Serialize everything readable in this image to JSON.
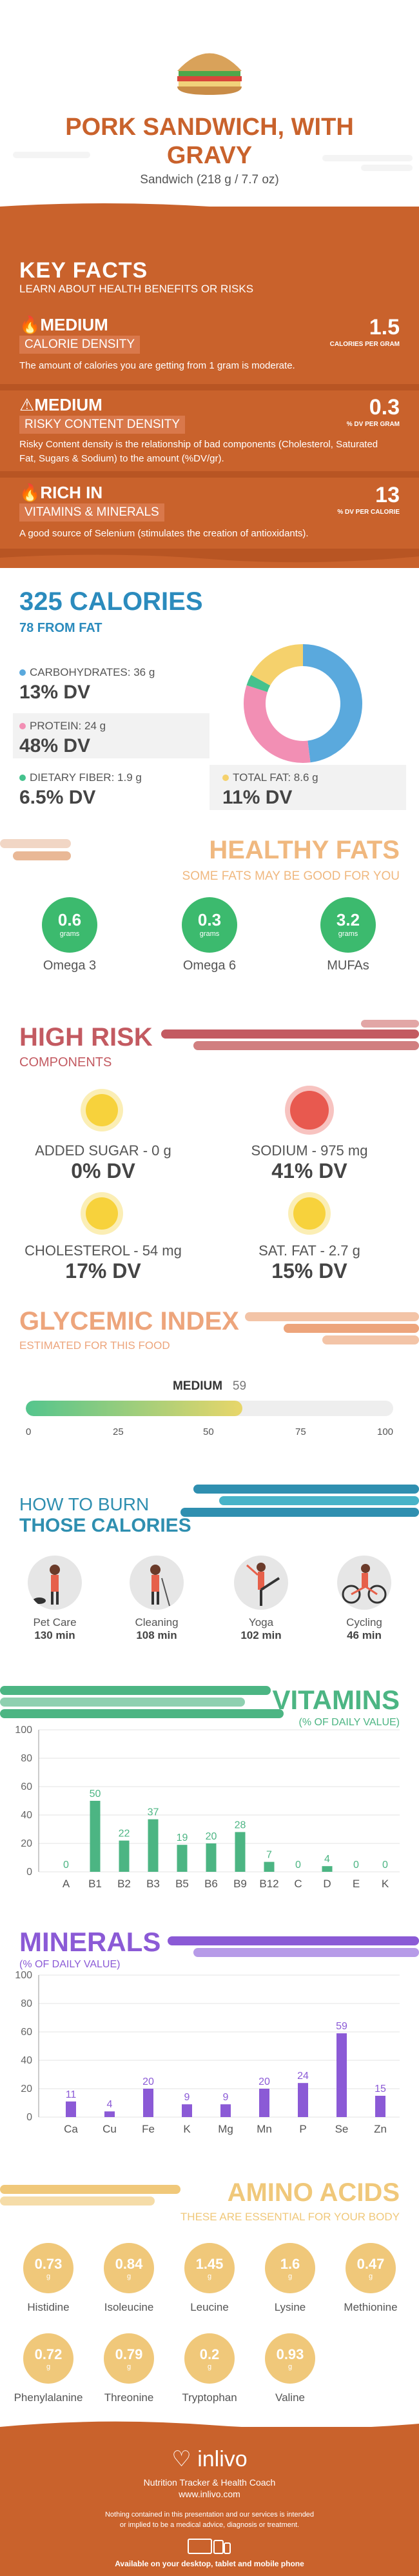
{
  "header": {
    "title": "PORK SANDWICH, WITH GRAVY",
    "serving": "Sandwich (218 g / 7.7 oz)"
  },
  "key_facts": {
    "heading": "KEY FACTS",
    "subheading": "LEARN ABOUT HEALTH BENEFITS OR RISKS",
    "items": [
      {
        "level": "MEDIUM",
        "label": "CALORIE DENSITY",
        "value": "1.5",
        "unit": "CALORIES PER GRAM",
        "desc": "The amount of calories you are getting from 1 gram is moderate."
      },
      {
        "level": "MEDIUM",
        "label": "RISKY CONTENT DENSITY",
        "value": "0.3",
        "unit": "% DV PER GRAM",
        "desc": "Risky Content density is the relationship of bad components (Cholesterol, Saturated Fat, Sugars & Sodium) to the amount (%DV/gr)."
      },
      {
        "level": "RICH IN",
        "label": "VITAMINS & MINERALS",
        "value": "13",
        "unit": "% DV PER CALORIE",
        "desc": "A good source of Selenium (stimulates the creation of antioxidants)."
      }
    ]
  },
  "calories": {
    "title": "325 CALORIES",
    "from_fat": "78 FROM FAT",
    "nutrients": [
      {
        "label": "CARBOHYDRATES: 36 g",
        "dv": "13% DV",
        "color": "#5aa9dd"
      },
      {
        "label": "PROTEIN: 24 g",
        "dv": "48% DV",
        "color": "#f28fb4"
      },
      {
        "label": "DIETARY FIBER: 1.9 g",
        "dv": "6.5% DV",
        "color": "#44c28d"
      },
      {
        "label": "TOTAL FAT: 8.6 g",
        "dv": "11% DV",
        "color": "#f5d16c"
      }
    ],
    "donut": [
      {
        "name": "carbs",
        "value": 48,
        "color": "#5aa9dd"
      },
      {
        "name": "protein",
        "value": 32,
        "color": "#f28fb4"
      },
      {
        "name": "fiber",
        "value": 3,
        "color": "#44c28d"
      },
      {
        "name": "fat",
        "value": 17,
        "color": "#f5d16c"
      }
    ]
  },
  "healthy_fats": {
    "title": "HEALTHY FATS",
    "subtitle": "SOME FATS MAY BE GOOD FOR YOU",
    "items": [
      {
        "value": "0.6",
        "unit": "grams",
        "name": "Omega 3"
      },
      {
        "value": "0.3",
        "unit": "grams",
        "name": "Omega 6"
      },
      {
        "value": "3.2",
        "unit": "grams",
        "name": "MUFAs"
      }
    ]
  },
  "high_risk": {
    "title": "HIGH RISK",
    "subtitle": "COMPONENTS",
    "items": [
      {
        "label": "ADDED SUGAR - 0 g",
        "dv": "0% DV",
        "mood": "happy"
      },
      {
        "label": "SODIUM - 975 mg",
        "dv": "41% DV",
        "mood": "sad"
      },
      {
        "label": "CHOLESTEROL - 54 mg",
        "dv": "17% DV",
        "mood": "happy"
      },
      {
        "label": "SAT. FAT - 2.7 g",
        "dv": "15% DV",
        "mood": "happy"
      }
    ]
  },
  "glycemic": {
    "title": "GLYCEMIC INDEX",
    "subtitle": "ESTIMATED FOR THIS FOOD",
    "level": "MEDIUM",
    "value": "59",
    "value_num": 59,
    "ticks": [
      "0",
      "25",
      "50",
      "75",
      "100"
    ]
  },
  "burn": {
    "title1": "HOW TO BURN",
    "title2": "THOSE CALORIES",
    "activities": [
      {
        "name": "Pet Care",
        "minutes": "130 min",
        "icon": "pet-care-icon"
      },
      {
        "name": "Cleaning",
        "minutes": "108 min",
        "icon": "cleaning-icon"
      },
      {
        "name": "Yoga",
        "minutes": "102 min",
        "icon": "yoga-icon"
      },
      {
        "name": "Cycling",
        "minutes": "46 min",
        "icon": "cycling-icon"
      }
    ]
  },
  "vitamins": {
    "title": "VITAMINS",
    "subtitle": "(% OF DAILY VALUE)"
  },
  "minerals": {
    "title": "MINERALS",
    "subtitle": "(% OF DAILY VALUE)"
  },
  "chart_data": [
    {
      "type": "bar",
      "title": "VITAMINS",
      "subtitle": "(% OF DAILY VALUE)",
      "categories": [
        "A",
        "B1",
        "B2",
        "B3",
        "B5",
        "B6",
        "B9",
        "B12",
        "C",
        "D",
        "E",
        "K"
      ],
      "values": [
        0,
        50,
        22,
        37,
        19,
        20,
        28,
        7,
        0,
        4,
        0,
        0
      ],
      "ylim": [
        0,
        100
      ],
      "yticks": [
        "0",
        "20",
        "40",
        "60",
        "80",
        "100"
      ],
      "color": "#4cb583"
    },
    {
      "type": "bar",
      "title": "MINERALS",
      "subtitle": "(% OF DAILY VALUE)",
      "categories": [
        "Ca",
        "Cu",
        "Fe",
        "K",
        "Mg",
        "Mn",
        "P",
        "Se",
        "Zn"
      ],
      "values": [
        11,
        4,
        20,
        9,
        9,
        20,
        24,
        59,
        15
      ],
      "ylim": [
        0,
        100
      ],
      "yticks": [
        "0",
        "20",
        "40",
        "60",
        "80",
        "100"
      ],
      "color": "#8b5ad6"
    }
  ],
  "amino": {
    "title": "AMINO ACIDS",
    "subtitle": "THESE ARE ESSENTIAL FOR YOUR BODY",
    "unit": "g",
    "items": [
      {
        "value": "0.73",
        "name": "Histidine"
      },
      {
        "value": "0.84",
        "name": "Isoleucine"
      },
      {
        "value": "1.45",
        "name": "Leucine"
      },
      {
        "value": "1.6",
        "name": "Lysine"
      },
      {
        "value": "0.47",
        "name": "Methionine"
      },
      {
        "value": "0.72",
        "name": "Phenylalanine"
      },
      {
        "value": "0.79",
        "name": "Threonine"
      },
      {
        "value": "0.2",
        "name": "Tryptophan"
      },
      {
        "value": "0.93",
        "name": "Valine"
      }
    ]
  },
  "footer": {
    "brand": "inlivo",
    "tagline": "Nutrition Tracker & Health Coach",
    "url": "www.inlivo.com",
    "disclaimer": "Nothing contained in this presentation and our services is intended or implied to be a medical advice, diagnosis or treatment.",
    "available": "Available on your desktop, tablet and mobile phone"
  }
}
